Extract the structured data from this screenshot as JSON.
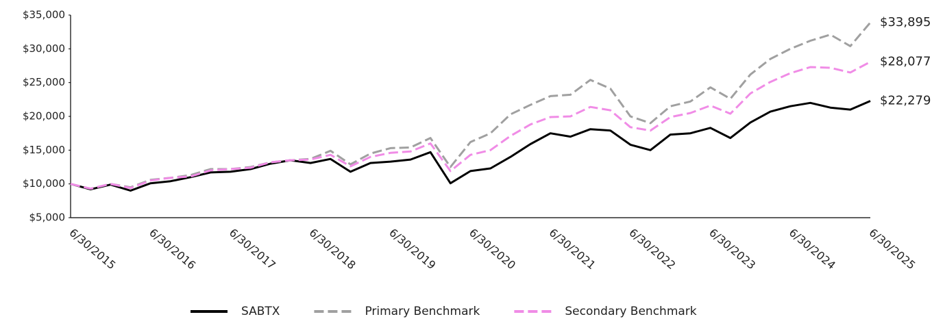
{
  "chart_data": {
    "type": "line",
    "categories": [
      "6/30/2015",
      null,
      null,
      null,
      "6/30/2016",
      null,
      null,
      null,
      "6/30/2017",
      null,
      null,
      null,
      "6/30/2018",
      null,
      null,
      null,
      "6/30/2019",
      null,
      null,
      null,
      "6/30/2020",
      null,
      null,
      null,
      "6/30/2021",
      null,
      null,
      null,
      "6/30/2022",
      null,
      null,
      null,
      "6/30/2023",
      null,
      null,
      null,
      "6/30/2024",
      null,
      null,
      null,
      "6/30/2025"
    ],
    "series": [
      {
        "name": "SABTX",
        "color": "#000000",
        "dashed": false,
        "values": [
          10000,
          9200,
          9900,
          9000,
          10100,
          10400,
          11000,
          11700,
          11800,
          12200,
          13000,
          13500,
          13100,
          13700,
          11800,
          13100,
          13300,
          13600,
          14700,
          10100,
          11900,
          12300,
          14000,
          15900,
          17500,
          17000,
          18100,
          17900,
          15800,
          15000,
          17300,
          17500,
          18300,
          16800,
          19100,
          20700,
          21500,
          22000,
          21300,
          21000,
          22279
        ],
        "value_labels": [
          null,
          null,
          null,
          null,
          null,
          null,
          null,
          null,
          null,
          null,
          null,
          null,
          null,
          null,
          null,
          null,
          null,
          null,
          null,
          null,
          null,
          null,
          null,
          null,
          null,
          null,
          null,
          null,
          null,
          null,
          null,
          null,
          null,
          null,
          null,
          null,
          null,
          null,
          null,
          null,
          "$22,279"
        ]
      },
      {
        "name": "Primary Benchmark",
        "color": "#a0a0a0",
        "dashed": true,
        "values": [
          10000,
          9300,
          10000,
          9500,
          10600,
          10900,
          11300,
          12200,
          12200,
          12500,
          13200,
          13500,
          13700,
          14900,
          12900,
          14500,
          15300,
          15400,
          16800,
          12500,
          16200,
          17500,
          20300,
          21700,
          23000,
          23200,
          25400,
          24100,
          20000,
          19000,
          21500,
          22200,
          24300,
          22600,
          26200,
          28500,
          30000,
          31200,
          32100,
          30400,
          33895
        ],
        "value_labels": [
          null,
          null,
          null,
          null,
          null,
          null,
          null,
          null,
          null,
          null,
          null,
          null,
          null,
          null,
          null,
          null,
          null,
          null,
          null,
          null,
          null,
          null,
          null,
          null,
          null,
          null,
          null,
          null,
          null,
          null,
          null,
          null,
          null,
          null,
          null,
          null,
          null,
          null,
          null,
          null,
          "$33,895"
        ]
      },
      {
        "name": "Secondary Benchmark",
        "color": "#f08ce6",
        "dashed": true,
        "values": [
          10000,
          9300,
          10000,
          9400,
          10500,
          10900,
          11100,
          12000,
          12200,
          12400,
          13200,
          13500,
          13600,
          14300,
          12600,
          14000,
          14600,
          14800,
          16000,
          11900,
          14300,
          15000,
          17100,
          18800,
          19900,
          20000,
          21400,
          20900,
          18400,
          17900,
          19900,
          20500,
          21600,
          20400,
          23400,
          25100,
          26400,
          27300,
          27200,
          26500,
          28077
        ],
        "value_labels": [
          null,
          null,
          null,
          null,
          null,
          null,
          null,
          null,
          null,
          null,
          null,
          null,
          null,
          null,
          null,
          null,
          null,
          null,
          null,
          null,
          null,
          null,
          null,
          null,
          null,
          null,
          null,
          null,
          null,
          null,
          null,
          null,
          null,
          null,
          null,
          null,
          null,
          null,
          null,
          null,
          "$28,077"
        ]
      }
    ],
    "ylim": [
      5000,
      35000
    ],
    "yticks": [
      {
        "value": 5000,
        "label": "$5,000"
      },
      {
        "value": 10000,
        "label": "$10,000"
      },
      {
        "value": 15000,
        "label": "$15,000"
      },
      {
        "value": 20000,
        "label": "$20,000"
      },
      {
        "value": 25000,
        "label": "$25,000"
      },
      {
        "value": 30000,
        "label": "$30,000"
      },
      {
        "value": 35000,
        "label": "$35,000"
      }
    ],
    "grid": false,
    "legend": "bottom"
  }
}
